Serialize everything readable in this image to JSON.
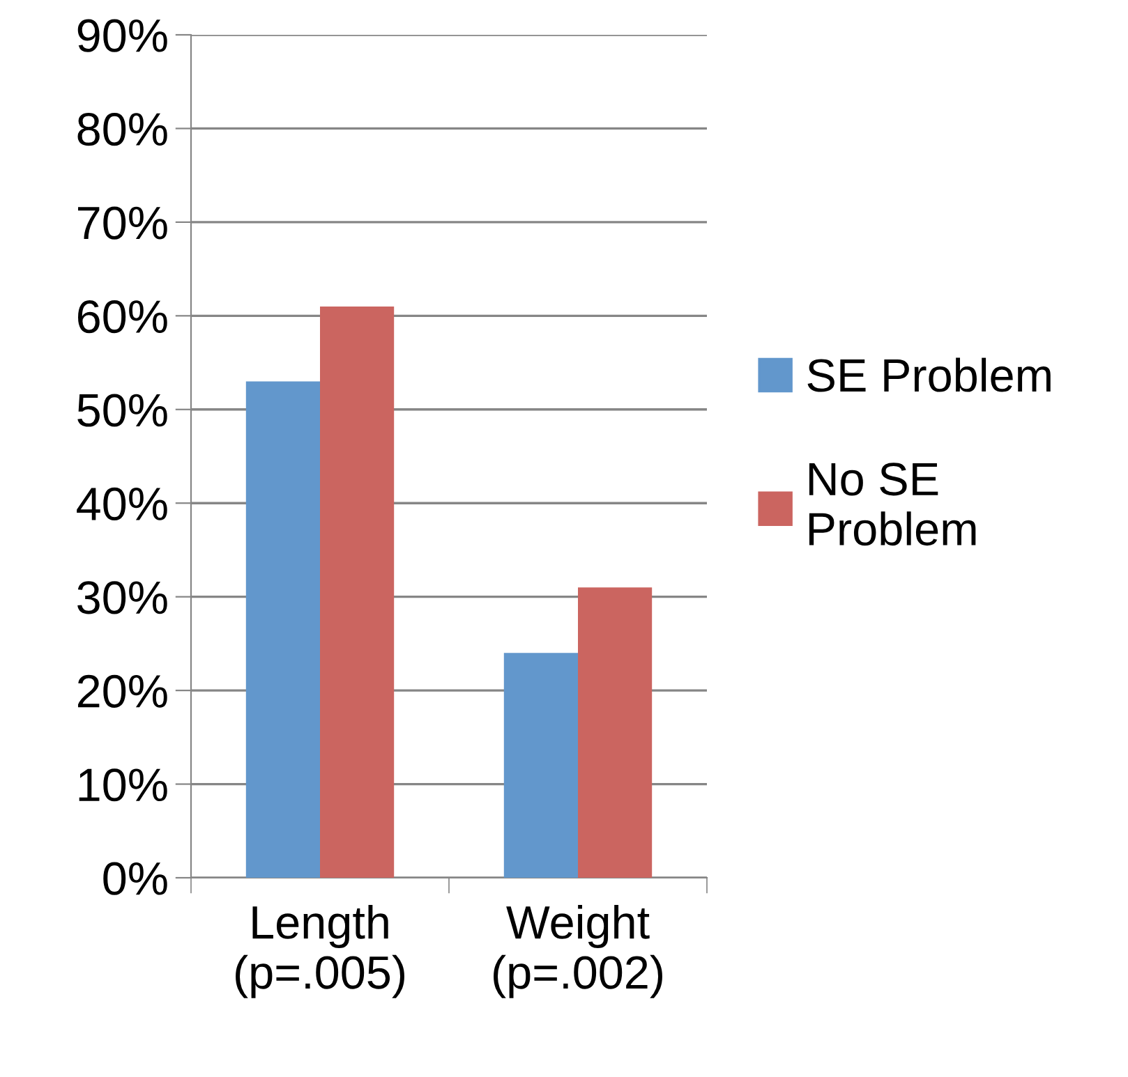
{
  "chart_data": {
    "type": "bar",
    "categories": [
      "Length\n(p=.005)",
      "Weight\n(p=.002)"
    ],
    "series": [
      {
        "name": "SE Problem",
        "color": "#6297cc",
        "values": [
          53,
          24
        ]
      },
      {
        "name": "No SE\nProblem",
        "color": "#cb6560",
        "values": [
          61,
          31
        ]
      }
    ],
    "ylim": [
      0,
      90
    ],
    "yticks": [
      {
        "value": 0,
        "label": "0%"
      },
      {
        "value": 10,
        "label": "10%"
      },
      {
        "value": 20,
        "label": "20%"
      },
      {
        "value": 30,
        "label": "30%"
      },
      {
        "value": 40,
        "label": "40%"
      },
      {
        "value": 50,
        "label": "50%"
      },
      {
        "value": 60,
        "label": "60%"
      },
      {
        "value": 70,
        "label": "70%"
      },
      {
        "value": 80,
        "label": "80%"
      },
      {
        "value": 90,
        "label": "90%"
      }
    ],
    "grid": "y",
    "legend": "right"
  }
}
